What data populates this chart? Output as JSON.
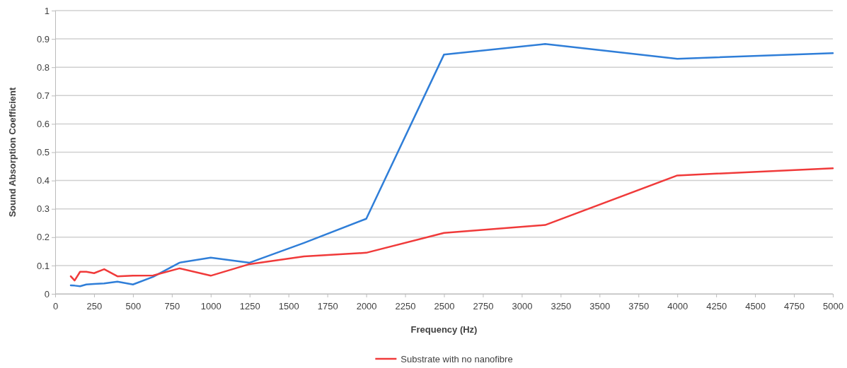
{
  "chart_data": {
    "type": "line",
    "xlabel": "Frequency (Hz)",
    "ylabel": "Sound Absorption Coefficient",
    "x": [
      100,
      125,
      160,
      200,
      250,
      315,
      400,
      500,
      630,
      800,
      1000,
      1250,
      1600,
      2000,
      2500,
      3150,
      4000,
      5000
    ],
    "series": [
      {
        "color": "#2f7ed8",
        "values": [
          0.03,
          0.029,
          0.027,
          0.033,
          0.035,
          0.037,
          0.043,
          0.033,
          0.06,
          0.11,
          0.128,
          0.11,
          0.18,
          0.265,
          0.845,
          0.882,
          0.83,
          0.85
        ]
      },
      {
        "name": "Substrate with no nanofibre",
        "color": "#f03a3a",
        "values": [
          0.062,
          0.047,
          0.078,
          0.078,
          0.073,
          0.087,
          0.062,
          0.064,
          0.065,
          0.09,
          0.064,
          0.105,
          0.132,
          0.145,
          0.215,
          0.243,
          0.418,
          0.443
        ]
      }
    ],
    "xlim": [
      0,
      5000
    ],
    "xticks": [
      0,
      250,
      500,
      750,
      1000,
      1250,
      1500,
      1750,
      2000,
      2250,
      2500,
      2750,
      3000,
      3250,
      3500,
      3750,
      4000,
      4250,
      4500,
      4750,
      5000
    ],
    "ylim": [
      0,
      1
    ],
    "yticks": [
      0,
      0.1,
      0.2,
      0.3,
      0.4,
      0.5,
      0.6,
      0.7,
      0.8,
      0.9,
      1
    ],
    "grid": "y",
    "legend": "bottom",
    "marker": "none",
    "line_style": "solid"
  }
}
